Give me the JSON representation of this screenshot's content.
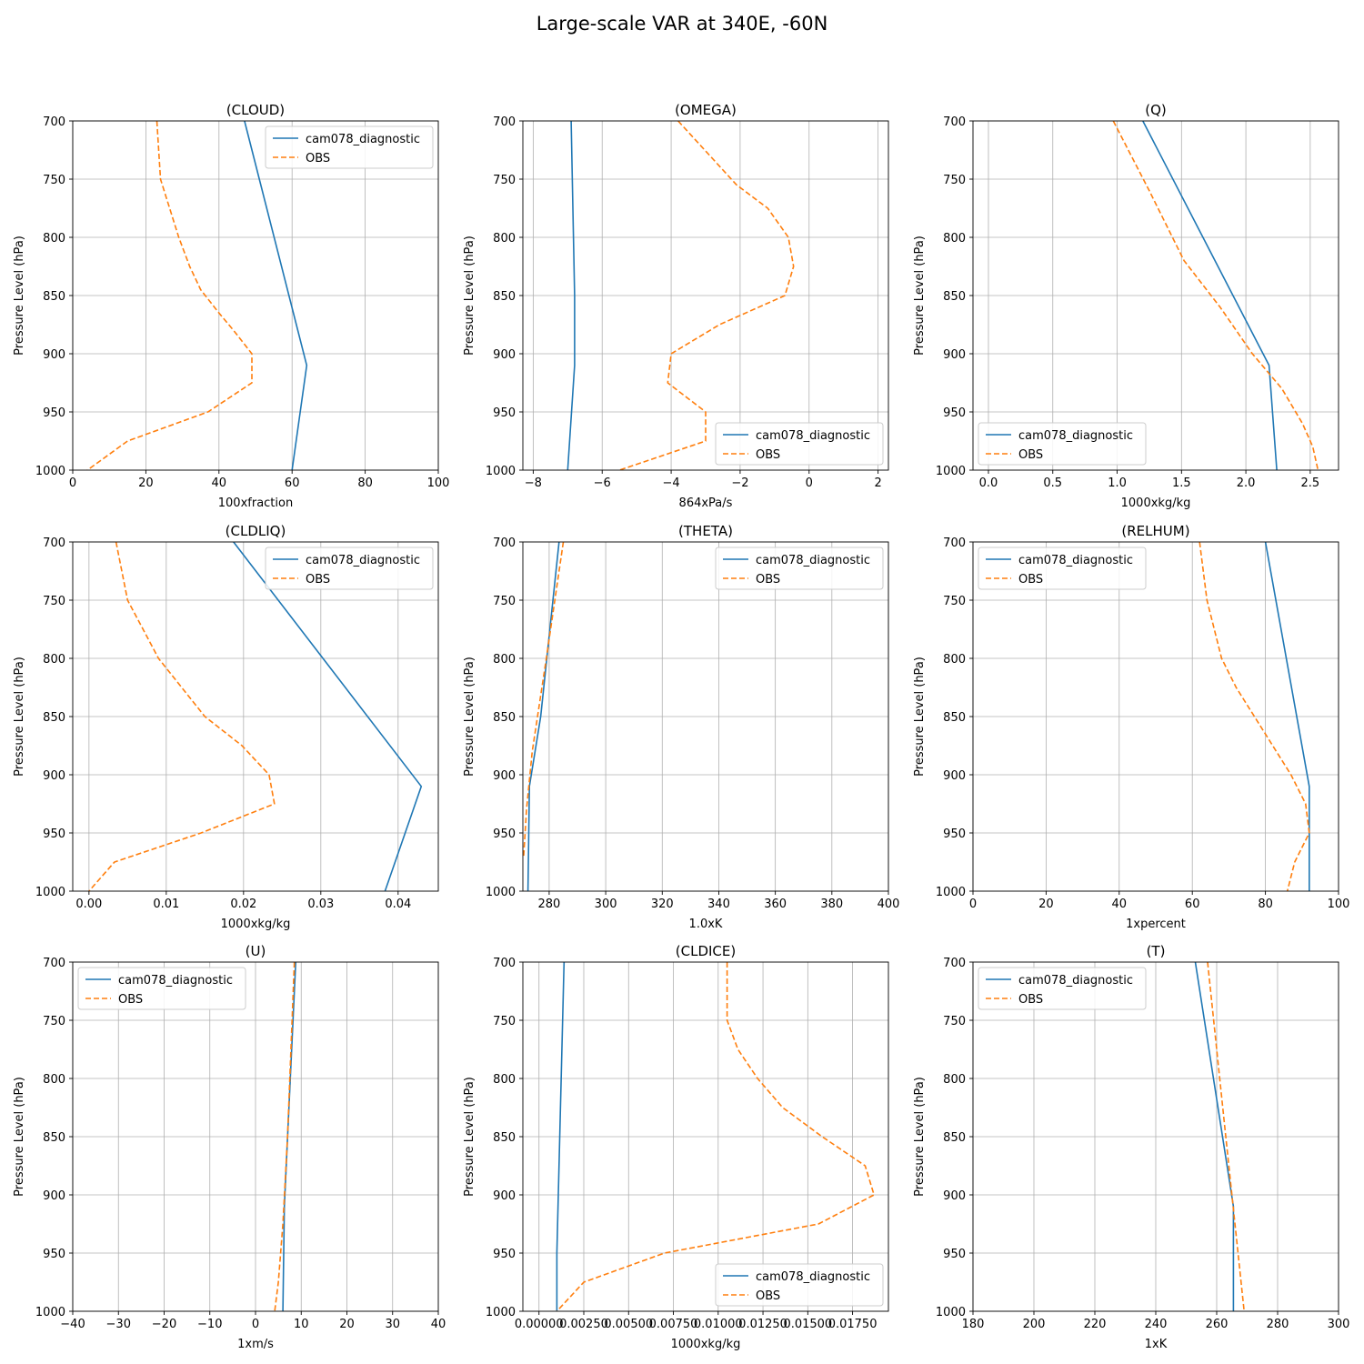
{
  "figure": {
    "title": "Large-scale VAR at 340E, -60N"
  },
  "colors": {
    "model": "#1f77b4",
    "obs": "#ff7f0e",
    "grid": "#b0b0b0"
  },
  "chart_data": [
    {
      "type": "line",
      "title": "(CLOUD)",
      "xlabel": "100xfraction",
      "ylabel": "Pressure Level (hPa)",
      "xlim": [
        0,
        100
      ],
      "ylim": [
        1000,
        700
      ],
      "grid": true,
      "legend": "upper right",
      "xticks": [
        0,
        20,
        40,
        60,
        80,
        100
      ],
      "xtick_labels": [
        "0",
        "20",
        "40",
        "60",
        "80",
        "100"
      ],
      "yticks": [
        700,
        750,
        800,
        850,
        900,
        950,
        1000
      ],
      "ytick_labels": [
        "700",
        "750",
        "800",
        "850",
        "900",
        "950",
        "1000"
      ],
      "series": [
        {
          "name": "cam078_diagnostic",
          "style": "solid",
          "x": [
            47,
            64,
            60
          ],
          "y": [
            700,
            910,
            1000
          ]
        },
        {
          "name": "OBS",
          "style": "dashed",
          "x": [
            23,
            24,
            29,
            32,
            35,
            40,
            44,
            49,
            49,
            37,
            15,
            4
          ],
          "y": [
            700,
            750,
            800,
            825,
            845,
            865,
            880,
            900,
            925,
            950,
            975,
            1000
          ]
        }
      ]
    },
    {
      "type": "line",
      "title": "(OMEGA)",
      "xlabel": "864xPa/s",
      "ylabel": "Pressure Level (hPa)",
      "xlim": [
        -8.3,
        2.3
      ],
      "ylim": [
        1000,
        700
      ],
      "grid": true,
      "legend": "lower right",
      "xticks": [
        -8,
        -6,
        -4,
        -2,
        0,
        2
      ],
      "xtick_labels": [
        "−8",
        "−6",
        "−4",
        "−2",
        "0",
        "2"
      ],
      "yticks": [
        700,
        750,
        800,
        850,
        900,
        950,
        1000
      ],
      "ytick_labels": [
        "700",
        "750",
        "800",
        "850",
        "900",
        "950",
        "1000"
      ],
      "series": [
        {
          "name": "cam078_diagnostic",
          "style": "solid",
          "x": [
            -6.9,
            -6.8,
            -6.8,
            -7.0
          ],
          "y": [
            700,
            850,
            910,
            1000
          ]
        },
        {
          "name": "OBS",
          "style": "dashed",
          "x": [
            -3.8,
            -2.1,
            -1.2,
            -0.6,
            -0.45,
            -0.7,
            -2.6,
            -4.0,
            -4.1,
            -3.0,
            -3.0,
            -5.5
          ],
          "y": [
            700,
            755,
            775,
            800,
            825,
            850,
            875,
            900,
            925,
            950,
            975,
            1000
          ]
        }
      ]
    },
    {
      "type": "line",
      "title": "(Q)",
      "xlabel": "1000xkg/kg",
      "ylabel": "Pressure Level (hPa)",
      "xlim": [
        -0.12,
        2.72
      ],
      "ylim": [
        1000,
        700
      ],
      "grid": true,
      "legend": "lower left",
      "xticks": [
        0,
        0.5,
        1.0,
        1.5,
        2.0,
        2.5
      ],
      "xtick_labels": [
        "0.0",
        "0.5",
        "1.0",
        "1.5",
        "2.0",
        "2.5"
      ],
      "yticks": [
        700,
        750,
        800,
        850,
        900,
        950,
        1000
      ],
      "ytick_labels": [
        "700",
        "750",
        "800",
        "850",
        "900",
        "950",
        "1000"
      ],
      "series": [
        {
          "name": "cam078_diagnostic",
          "style": "solid",
          "x": [
            1.2,
            2.18,
            2.24
          ],
          "y": [
            700,
            910,
            1000
          ]
        },
        {
          "name": "OBS",
          "style": "dashed",
          "x": [
            0.97,
            1.25,
            1.52,
            1.8,
            2.05,
            2.28,
            2.44,
            2.52,
            2.56
          ],
          "y": [
            700,
            760,
            820,
            860,
            900,
            930,
            960,
            980,
            1000
          ]
        }
      ]
    },
    {
      "type": "line",
      "title": "(CLDLIQ)",
      "xlabel": "1000xkg/kg",
      "ylabel": "Pressure Level (hPa)",
      "xlim": [
        -0.0021,
        0.0452
      ],
      "ylim": [
        1000,
        700
      ],
      "grid": true,
      "legend": "upper right",
      "xticks": [
        0,
        0.01,
        0.02,
        0.03,
        0.04
      ],
      "xtick_labels": [
        "0.00",
        "0.01",
        "0.02",
        "0.03",
        "0.04"
      ],
      "yticks": [
        700,
        750,
        800,
        850,
        900,
        950,
        1000
      ],
      "ytick_labels": [
        "700",
        "750",
        "800",
        "850",
        "900",
        "950",
        "1000"
      ],
      "series": [
        {
          "name": "cam078_diagnostic",
          "style": "solid",
          "x": [
            0.0187,
            0.043,
            0.0383
          ],
          "y": [
            700,
            910,
            1000
          ]
        },
        {
          "name": "OBS",
          "style": "dashed",
          "x": [
            0.0035,
            0.005,
            0.007,
            0.009,
            0.012,
            0.015,
            0.0198,
            0.0233,
            0.024,
            0.0145,
            0.0033,
            0.0
          ],
          "y": [
            700,
            750,
            775,
            800,
            825,
            850,
            875,
            900,
            925,
            950,
            975,
            1000
          ]
        }
      ]
    },
    {
      "type": "line",
      "title": "(THETA)",
      "xlabel": "1.0xK",
      "ylabel": "Pressure Level (hPa)",
      "xlim": [
        270.7,
        400
      ],
      "ylim": [
        1000,
        700
      ],
      "grid": true,
      "legend": "upper right",
      "xticks": [
        280,
        300,
        320,
        340,
        360,
        380,
        400
      ],
      "xtick_labels": [
        "280",
        "300",
        "320",
        "340",
        "360",
        "380",
        "400"
      ],
      "yticks": [
        700,
        750,
        800,
        850,
        900,
        950,
        1000
      ],
      "ytick_labels": [
        "700",
        "750",
        "800",
        "850",
        "900",
        "950",
        "1000"
      ],
      "series": [
        {
          "name": "cam078_diagnostic",
          "style": "solid",
          "x": [
            283.5,
            277,
            273,
            272.5
          ],
          "y": [
            700,
            850,
            910,
            1000
          ]
        },
        {
          "name": "OBS",
          "style": "dashed",
          "x": [
            285,
            279,
            274,
            272,
            271
          ],
          "y": [
            700,
            800,
            880,
            930,
            970
          ]
        }
      ]
    },
    {
      "type": "line",
      "title": "(RELHUM)",
      "xlabel": "1xpercent",
      "ylabel": "Pressure Level (hPa)",
      "xlim": [
        0,
        100
      ],
      "ylim": [
        1000,
        700
      ],
      "grid": true,
      "legend": "upper left",
      "xticks": [
        0,
        20,
        40,
        60,
        80,
        100
      ],
      "xtick_labels": [
        "0",
        "20",
        "40",
        "60",
        "80",
        "100"
      ],
      "yticks": [
        700,
        750,
        800,
        850,
        900,
        950,
        1000
      ],
      "ytick_labels": [
        "700",
        "750",
        "800",
        "850",
        "900",
        "950",
        "1000"
      ],
      "series": [
        {
          "name": "cam078_diagnostic",
          "style": "solid",
          "x": [
            80,
            92,
            92
          ],
          "y": [
            700,
            910,
            1000
          ]
        },
        {
          "name": "OBS",
          "style": "dashed",
          "x": [
            62,
            64,
            68,
            72,
            77,
            82,
            87,
            91,
            92,
            88,
            86
          ],
          "y": [
            700,
            750,
            800,
            825,
            850,
            875,
            900,
            925,
            950,
            975,
            1000
          ]
        }
      ]
    },
    {
      "type": "line",
      "title": "(U)",
      "xlabel": "1xm/s",
      "ylabel": "Pressure Level (hPa)",
      "xlim": [
        -40,
        40
      ],
      "ylim": [
        1000,
        700
      ],
      "grid": true,
      "legend": "upper left",
      "xticks": [
        -40,
        -30,
        -20,
        -10,
        0,
        10,
        20,
        30,
        40
      ],
      "xtick_labels": [
        "−40",
        "−30",
        "−20",
        "−10",
        "0",
        "10",
        "20",
        "30",
        "40"
      ],
      "yticks": [
        700,
        750,
        800,
        850,
        900,
        950,
        1000
      ],
      "ytick_labels": [
        "700",
        "750",
        "800",
        "850",
        "900",
        "950",
        "1000"
      ],
      "series": [
        {
          "name": "cam078_diagnostic",
          "style": "solid",
          "x": [
            8.8,
            6.3,
            6.0
          ],
          "y": [
            700,
            910,
            1000
          ]
        },
        {
          "name": "OBS",
          "style": "dashed",
          "x": [
            8.5,
            7.0,
            6.0,
            5.0,
            4.2
          ],
          "y": [
            700,
            850,
            925,
            975,
            1000
          ]
        }
      ]
    },
    {
      "type": "line",
      "title": "(CLDICE)",
      "xlabel": "1000xkg/kg",
      "ylabel": "Pressure Level (hPa)",
      "xlim": [
        -0.0009,
        0.0195
      ],
      "ylim": [
        1000,
        700
      ],
      "grid": true,
      "legend": "lower right",
      "xticks": [
        0,
        0.0025,
        0.005,
        0.0075,
        0.01,
        0.0125,
        0.015,
        0.0175
      ],
      "xtick_labels": [
        "0.00000",
        "0.00250",
        "0.00500",
        "0.00750",
        "0.01000",
        "0.01250",
        "0.01500",
        "0.01750"
      ],
      "yticks": [
        700,
        750,
        800,
        850,
        900,
        950,
        1000
      ],
      "ytick_labels": [
        "700",
        "750",
        "800",
        "850",
        "900",
        "950",
        "1000"
      ],
      "series": [
        {
          "name": "cam078_diagnostic",
          "style": "solid",
          "x": [
            0.0014,
            0.001,
            0.001
          ],
          "y": [
            700,
            950,
            1000
          ]
        },
        {
          "name": "OBS",
          "style": "dashed",
          "x": [
            0.0105,
            0.0105,
            0.0111,
            0.0122,
            0.0136,
            0.0158,
            0.0182,
            0.0187,
            0.0156,
            0.007,
            0.0025,
            0.001
          ],
          "y": [
            700,
            750,
            775,
            800,
            825,
            850,
            875,
            900,
            925,
            950,
            975,
            1000
          ]
        }
      ]
    },
    {
      "type": "line",
      "title": "(T)",
      "xlabel": "1xK",
      "ylabel": "Pressure Level (hPa)",
      "xlim": [
        180,
        300
      ],
      "ylim": [
        1000,
        700
      ],
      "grid": true,
      "legend": "upper left",
      "xticks": [
        180,
        200,
        220,
        240,
        260,
        280,
        300
      ],
      "xtick_labels": [
        "180",
        "200",
        "220",
        "240",
        "260",
        "280",
        "300"
      ],
      "yticks": [
        700,
        750,
        800,
        850,
        900,
        950,
        1000
      ],
      "ytick_labels": [
        "700",
        "750",
        "800",
        "850",
        "900",
        "950",
        "1000"
      ],
      "series": [
        {
          "name": "cam078_diagnostic",
          "style": "solid",
          "x": [
            253,
            265.5,
            265.5
          ],
          "y": [
            700,
            910,
            1000
          ]
        },
        {
          "name": "OBS",
          "style": "dashed",
          "x": [
            257,
            263,
            266,
            269
          ],
          "y": [
            700,
            850,
            925,
            1000
          ]
        }
      ]
    }
  ]
}
